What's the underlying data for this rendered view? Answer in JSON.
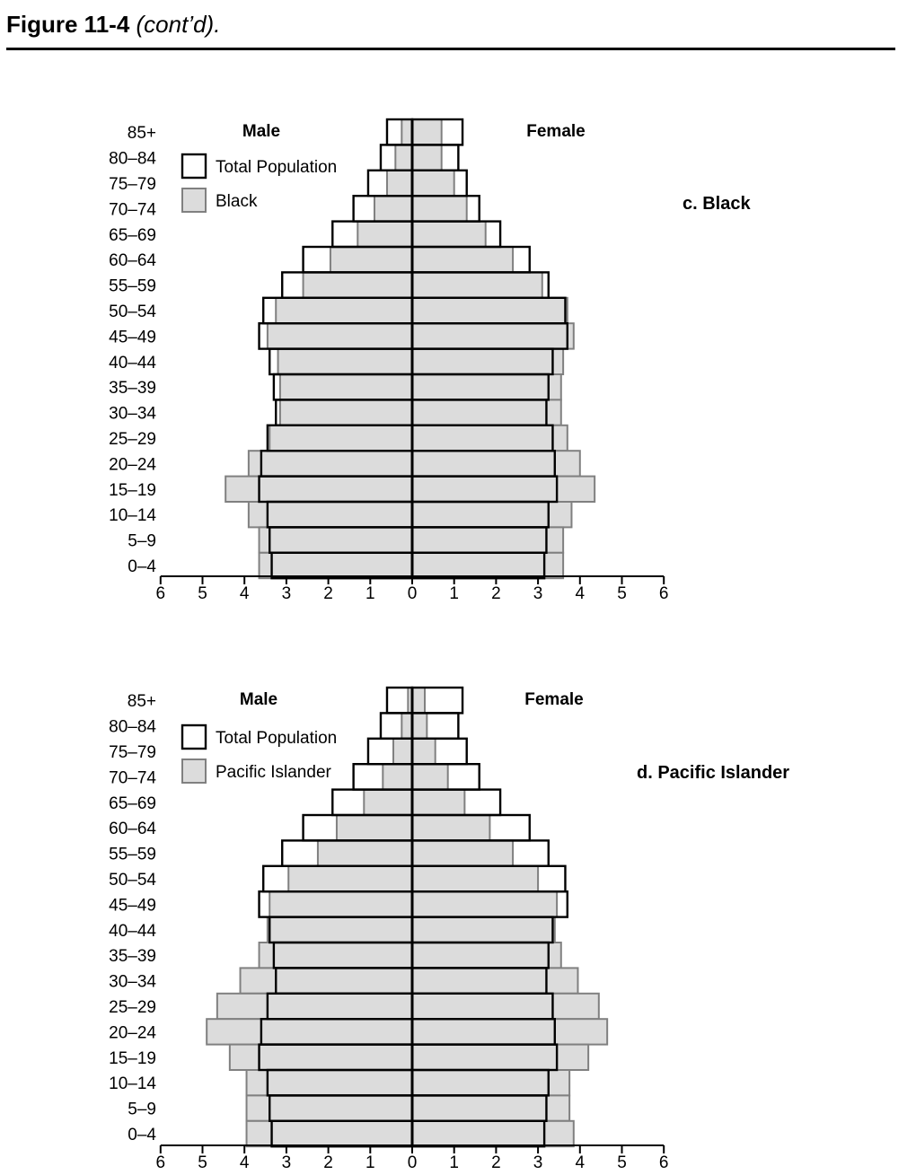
{
  "header": {
    "figure": "Figure 11-4",
    "cont": "(cont’d)."
  },
  "colors": {
    "total_outline": "#000000",
    "group_fill": "#dcdcdc",
    "group_outline": "#808080"
  },
  "chart_data": [
    {
      "type": "bar",
      "orientation": "horizontal-population-pyramid",
      "title": "c. Black",
      "left_label": "Male",
      "right_label": "Female",
      "categories": [
        "85+",
        "80–84",
        "75–79",
        "70–74",
        "65–69",
        "60–64",
        "55–59",
        "50–54",
        "45–49",
        "40–44",
        "35–39",
        "30–34",
        "25–29",
        "20–24",
        "15–19",
        "10–14",
        "5–9",
        "0–4"
      ],
      "series": [
        {
          "name": "Total Population",
          "male": [
            0.6,
            0.75,
            1.05,
            1.4,
            1.9,
            2.6,
            3.1,
            3.55,
            3.65,
            3.4,
            3.3,
            3.25,
            3.45,
            3.6,
            3.65,
            3.45,
            3.4,
            3.35
          ],
          "female": [
            1.2,
            1.1,
            1.3,
            1.6,
            2.1,
            2.8,
            3.25,
            3.65,
            3.7,
            3.35,
            3.25,
            3.2,
            3.35,
            3.4,
            3.45,
            3.25,
            3.2,
            3.15
          ]
        },
        {
          "name": "Black",
          "male": [
            0.25,
            0.4,
            0.6,
            0.9,
            1.3,
            1.95,
            2.6,
            3.25,
            3.45,
            3.2,
            3.15,
            3.15,
            3.4,
            3.9,
            4.45,
            3.9,
            3.65,
            3.65
          ],
          "female": [
            0.7,
            0.7,
            1.0,
            1.3,
            1.75,
            2.4,
            3.1,
            3.7,
            3.85,
            3.6,
            3.55,
            3.55,
            3.7,
            4.0,
            4.35,
            3.8,
            3.6,
            3.6
          ]
        }
      ],
      "xticks": [
        6,
        5,
        4,
        3,
        2,
        1,
        0,
        1,
        2,
        3,
        4,
        5,
        6
      ],
      "xlim": [
        -6,
        6
      ],
      "legend": "top-left"
    },
    {
      "type": "bar",
      "orientation": "horizontal-population-pyramid",
      "title": "d. Pacific Islander",
      "left_label": "Male",
      "right_label": "Female",
      "categories": [
        "85+",
        "80–84",
        "75–79",
        "70–74",
        "65–69",
        "60–64",
        "55–59",
        "50–54",
        "45–49",
        "40–44",
        "35–39",
        "30–34",
        "25–29",
        "20–24",
        "15–19",
        "10–14",
        "5–9",
        "0–4"
      ],
      "series": [
        {
          "name": "Total Population",
          "male": [
            0.6,
            0.75,
            1.05,
            1.4,
            1.9,
            2.6,
            3.1,
            3.55,
            3.65,
            3.4,
            3.3,
            3.25,
            3.45,
            3.6,
            3.65,
            3.45,
            3.4,
            3.35
          ],
          "female": [
            1.2,
            1.1,
            1.3,
            1.6,
            2.1,
            2.8,
            3.25,
            3.65,
            3.7,
            3.35,
            3.25,
            3.2,
            3.35,
            3.4,
            3.45,
            3.25,
            3.2,
            3.15
          ]
        },
        {
          "name": "Pacific Islander",
          "male": [
            0.1,
            0.25,
            0.45,
            0.7,
            1.15,
            1.8,
            2.25,
            2.95,
            3.4,
            3.45,
            3.65,
            4.1,
            4.65,
            4.9,
            4.35,
            3.95,
            3.95,
            3.95
          ],
          "female": [
            0.3,
            0.35,
            0.55,
            0.85,
            1.25,
            1.85,
            2.4,
            3.0,
            3.45,
            3.4,
            3.55,
            3.95,
            4.45,
            4.65,
            4.2,
            3.75,
            3.75,
            3.85
          ]
        }
      ],
      "xticks": [
        6,
        5,
        4,
        3,
        2,
        1,
        0,
        1,
        2,
        3,
        4,
        5,
        6
      ],
      "xlim": [
        -6,
        6
      ],
      "legend": "top-left"
    }
  ]
}
